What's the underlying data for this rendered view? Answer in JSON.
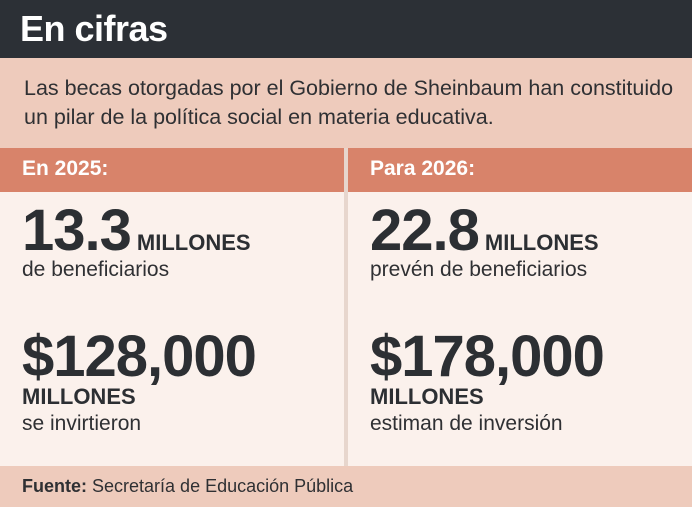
{
  "header": {
    "title": "En cifras"
  },
  "intro": {
    "text": "Las becas otorgadas por el Gobierno de Sheinbaum han constituido un pilar de la política social en materia educativa."
  },
  "columns": [
    {
      "heading": "En 2025:",
      "beneficiaries": {
        "value": "13.3",
        "unit": "MILLONES",
        "label": "de beneficiarios"
      },
      "investment": {
        "value": "$128,000",
        "unit": "MILLONES",
        "label": "se invirtieron"
      }
    },
    {
      "heading": "Para 2026:",
      "beneficiaries": {
        "value": "22.8",
        "unit": "MILLONES",
        "label": "prevén de beneficiarios"
      },
      "investment": {
        "value": "$178,000",
        "unit": "MILLONES",
        "label": "estiman de inversión"
      }
    }
  ],
  "footer": {
    "source_label": "Fuente:",
    "source_text": "Secretaría de Educación Pública"
  },
  "colors": {
    "title_bg": "#2c3036",
    "accent": "#d8836a",
    "panel": "#eecbbc",
    "body_bg": "#fbf1ec"
  }
}
